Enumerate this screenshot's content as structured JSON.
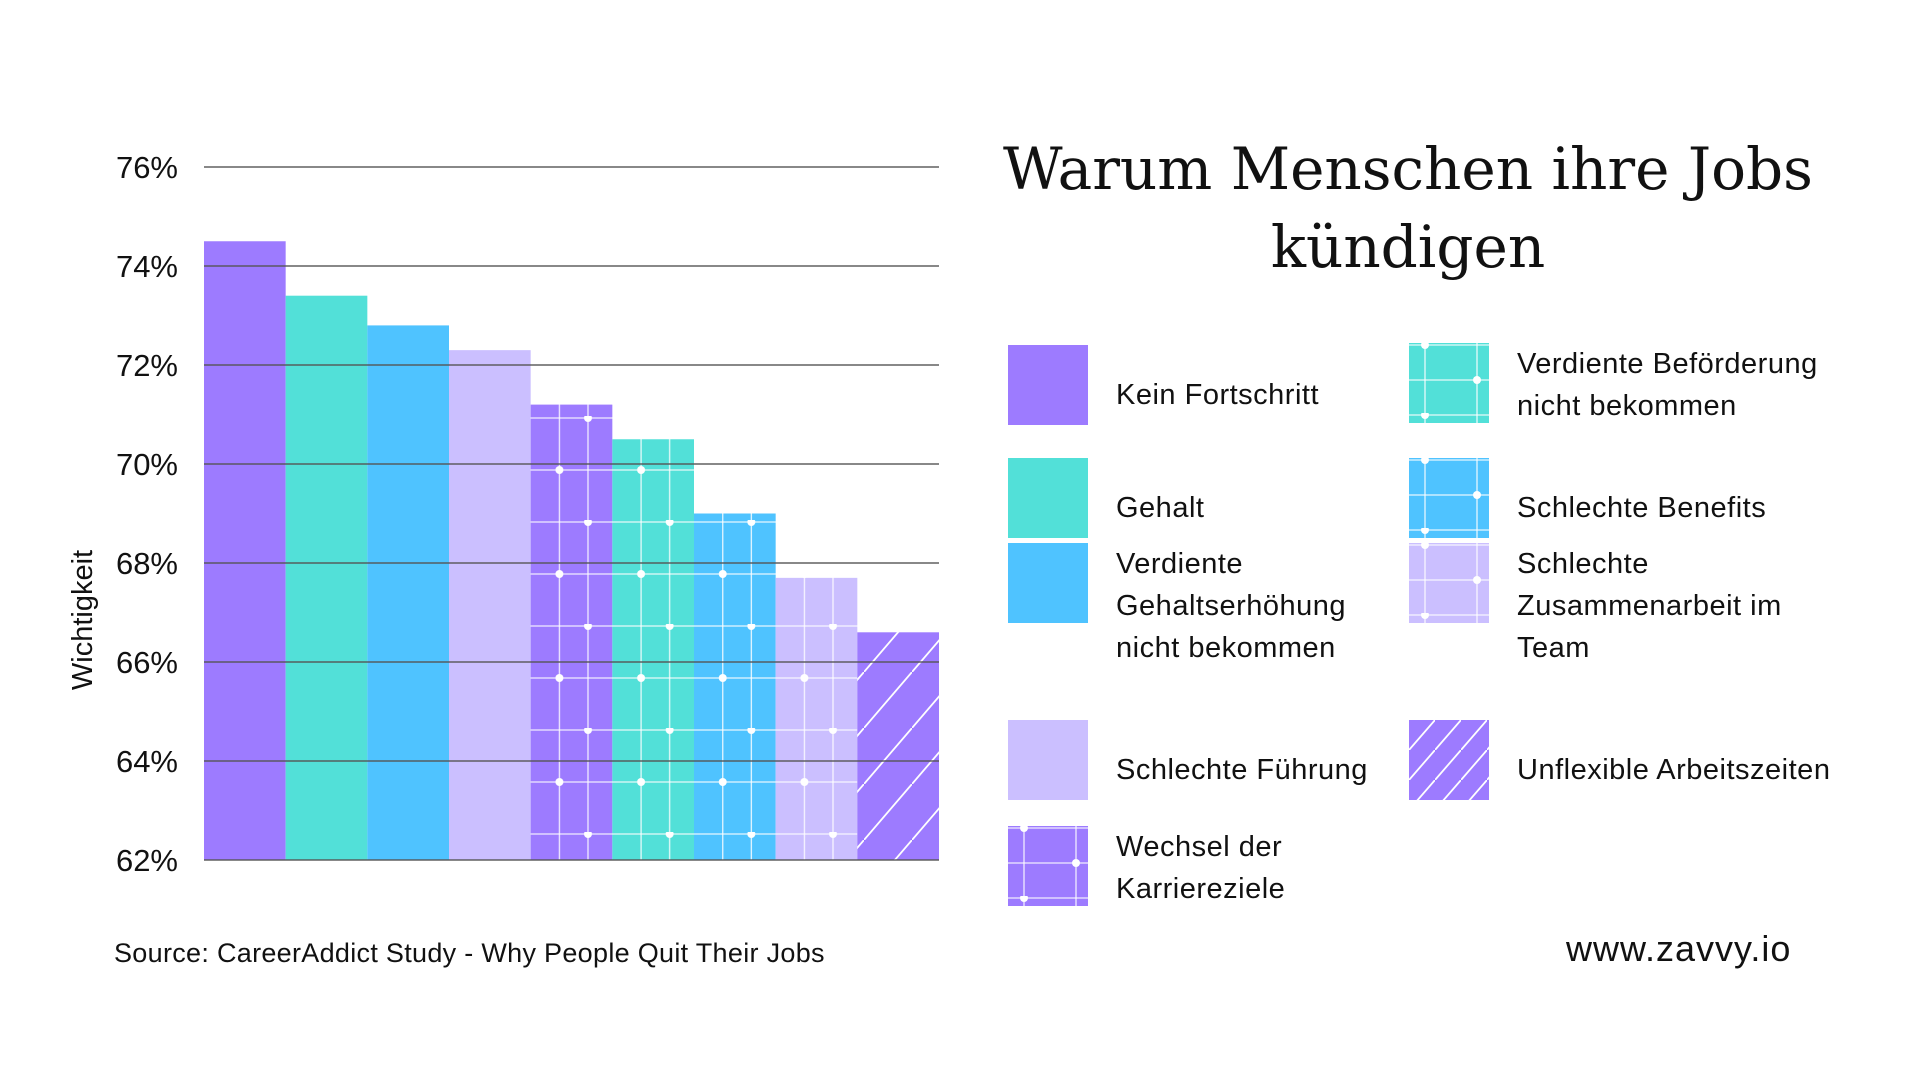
{
  "chart_data": {
    "type": "bar",
    "title": "Warum Menschen ihre Jobs kündigen",
    "ylabel": "Wichtigkeit",
    "ylim": [
      62,
      76
    ],
    "yticks": [
      "62%",
      "64%",
      "66%",
      "68%",
      "70%",
      "72%",
      "74%",
      "76%"
    ],
    "grid": true,
    "legend_position": "right",
    "series": [
      {
        "name": "Kein Fortschritt",
        "value": 74.5,
        "color": "#9d7bff",
        "pattern": "solid"
      },
      {
        "name": "Gehalt",
        "value": 73.4,
        "color": "#52e0d8",
        "pattern": "solid"
      },
      {
        "name": "Verdiente Gehaltserhöhung nicht bekommen",
        "value": 72.8,
        "color": "#4fc3ff",
        "pattern": "solid"
      },
      {
        "name": "Schlechte Führung",
        "value": 72.3,
        "color": "#cbbfff",
        "pattern": "solid"
      },
      {
        "name": "Wechsel der Karriereziele",
        "value": 71.2,
        "color": "#9d7bff",
        "pattern": "grid-dots"
      },
      {
        "name": "Verdiente Beförderung nicht bekommen",
        "value": 70.5,
        "color": "#52e0d8",
        "pattern": "grid-dots"
      },
      {
        "name": "Schlechte Benefits",
        "value": 69.0,
        "color": "#4fc3ff",
        "pattern": "grid-dots"
      },
      {
        "name": "Schlechte Zusammenarbeit im Team",
        "value": 67.7,
        "color": "#cbbfff",
        "pattern": "grid-dots"
      },
      {
        "name": "Unflexible Arbeitszeiten",
        "value": 66.6,
        "color": "#9d7bff",
        "pattern": "hatch"
      }
    ],
    "legend_lines": [
      [
        "Kein Fortschritt"
      ],
      [
        "Gehalt"
      ],
      [
        "Verdiente",
        "Gehaltserhöhung",
        "nicht bekommen"
      ],
      [
        "Schlechte Führung"
      ],
      [
        "Wechsel der",
        "Karriereziele"
      ],
      [
        "Verdiente Beförderung",
        "nicht bekommen"
      ],
      [
        "Schlechte Benefits"
      ],
      [
        "Schlechte",
        "Zusammenarbeit im",
        "Team"
      ],
      [
        "Unflexible Arbeitszeiten"
      ]
    ]
  },
  "title_lines": [
    "Warum Menschen ihre Jobs",
    "kündigen"
  ],
  "source": "Source: CareerAddict Study - Why People Quit Their Jobs",
  "website": "www.zavvy.io"
}
